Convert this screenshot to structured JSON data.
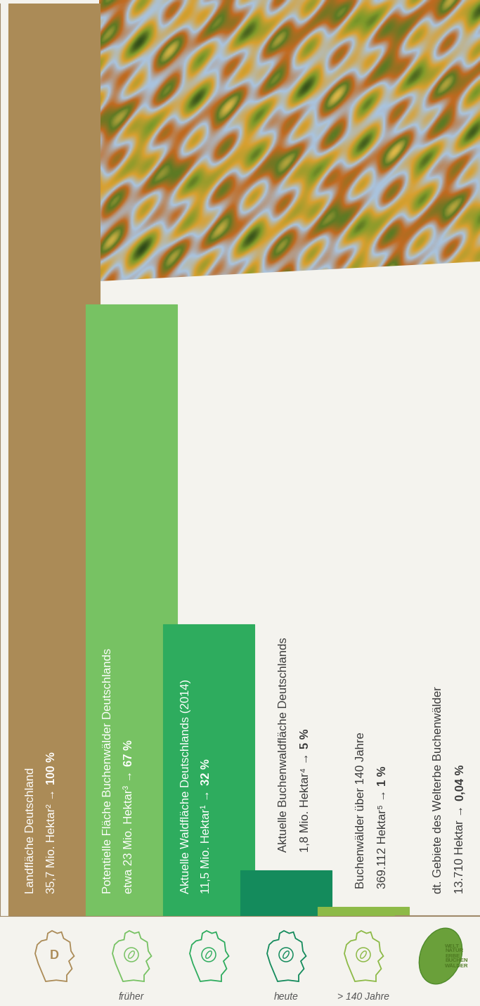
{
  "chart_data": {
    "type": "bar",
    "categories": [
      "Landfläche Deutschland",
      "Potentielle Fläche Buchenwälder Deutschlands",
      "Aktuelle Waldfläche Deutschlands (2014)",
      "Aktuelle Buchenwaldfläche Deutschlands",
      "Buchenwälder über 140 Jahre",
      "dt. Gebiete des Welterbe Buchenwälder"
    ],
    "details": [
      "35,7 Mio. Hektar² →",
      "etwa 23 Mio. Hektar³ →",
      "11,5 Mio. Hektar¹ →",
      "1,8 Mio. Hektar⁴ →",
      "369.112 Hektar⁵ →",
      "13.710 Hektar →"
    ],
    "values": [
      100,
      67,
      32,
      5,
      1,
      0.04
    ],
    "value_labels": [
      "100 %",
      "67 %",
      "32 %",
      "5 %",
      "1 %",
      "0,04 %"
    ],
    "data_labels": true,
    "colors": [
      "#ab8b57",
      "#77c263",
      "#2eac5e",
      "#148b5c",
      "#8dba47",
      "#a08a6a"
    ],
    "ylim": [
      0,
      100
    ],
    "tick_labels": false,
    "captions": [
      null,
      "früher",
      null,
      "heute",
      "> 140 Jahre",
      null
    ],
    "icon_letter": "D",
    "logo_text": [
      "WELT",
      "NATUR",
      "ERBE",
      "BUCHEN",
      "WÄLDER"
    ]
  }
}
